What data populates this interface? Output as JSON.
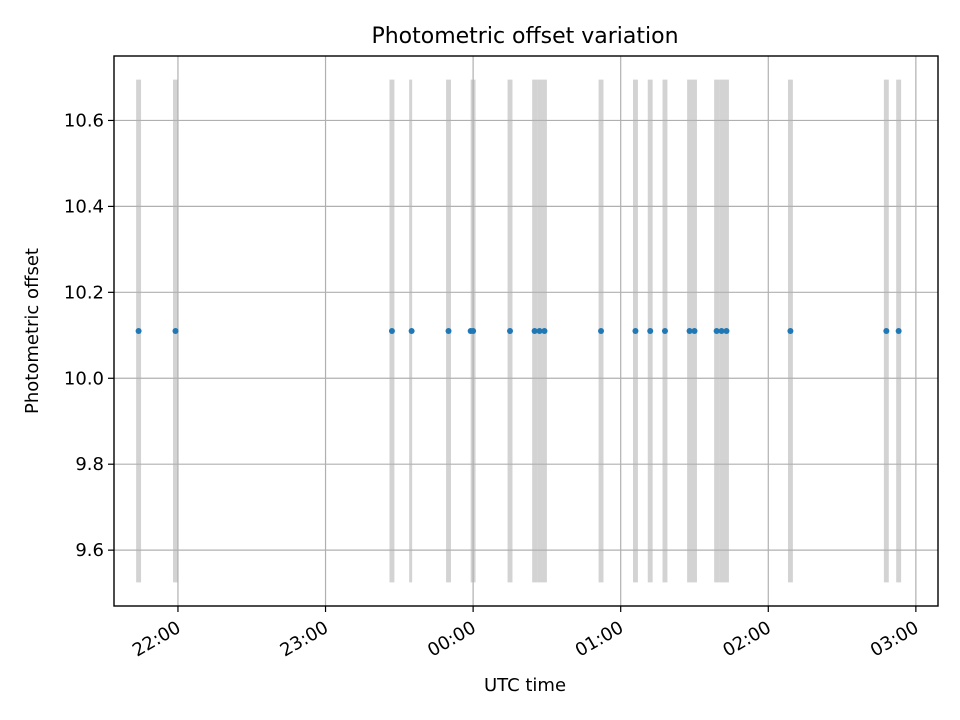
{
  "chart_data": {
    "type": "scatter",
    "title": "Photometric offset variation",
    "xlabel": "UTC time",
    "ylabel": "Photometric offset",
    "x_ticks": [
      "22:00",
      "23:00",
      "00:00",
      "01:00",
      "02:00",
      "03:00"
    ],
    "y_ticks": [
      "9.6",
      "9.8",
      "10.0",
      "10.2",
      "10.4",
      "10.6"
    ],
    "y_tick_values": [
      9.6,
      9.8,
      10.0,
      10.2,
      10.4,
      10.6
    ],
    "xlim": [
      "21:34",
      "03:09"
    ],
    "ylim": [
      9.47,
      10.75
    ],
    "grid": true,
    "marker_color": "#1f77b4",
    "band_color": "#d3d3d3",
    "band_range": [
      9.525,
      10.695
    ],
    "bands": [
      {
        "start": "21:43",
        "end": "21:45"
      },
      {
        "start": "21:58",
        "end": "22:00"
      },
      {
        "start": "23:26",
        "end": "23:28"
      },
      {
        "start": "23:34",
        "end": "23:35"
      },
      {
        "start": "23:49",
        "end": "23:51"
      },
      {
        "start": "23:59",
        "end": "00:01"
      },
      {
        "start": "00:14",
        "end": "00:16"
      },
      {
        "start": "00:24",
        "end": "00:26"
      },
      {
        "start": "00:26",
        "end": "00:30"
      },
      {
        "start": "00:51",
        "end": "00:53"
      },
      {
        "start": "01:05",
        "end": "01:07"
      },
      {
        "start": "01:11",
        "end": "01:13"
      },
      {
        "start": "01:17",
        "end": "01:19"
      },
      {
        "start": "01:27",
        "end": "01:31"
      },
      {
        "start": "01:38",
        "end": "01:40"
      },
      {
        "start": "01:40",
        "end": "01:44"
      },
      {
        "start": "02:08",
        "end": "02:10"
      },
      {
        "start": "02:47",
        "end": "02:49"
      },
      {
        "start": "02:52",
        "end": "02:54"
      }
    ],
    "points": [
      {
        "x": "21:44",
        "y": 10.11
      },
      {
        "x": "21:59",
        "y": 10.11
      },
      {
        "x": "23:27",
        "y": 10.11
      },
      {
        "x": "23:35",
        "y": 10.11
      },
      {
        "x": "23:50",
        "y": 10.11
      },
      {
        "x": "23:59",
        "y": 10.11
      },
      {
        "x": "00:00",
        "y": 10.11
      },
      {
        "x": "00:15",
        "y": 10.11
      },
      {
        "x": "00:25",
        "y": 10.11
      },
      {
        "x": "00:27",
        "y": 10.11
      },
      {
        "x": "00:29",
        "y": 10.11
      },
      {
        "x": "00:52",
        "y": 10.11
      },
      {
        "x": "01:06",
        "y": 10.11
      },
      {
        "x": "01:12",
        "y": 10.11
      },
      {
        "x": "01:18",
        "y": 10.11
      },
      {
        "x": "01:28",
        "y": 10.11
      },
      {
        "x": "01:30",
        "y": 10.11
      },
      {
        "x": "01:39",
        "y": 10.11
      },
      {
        "x": "01:41",
        "y": 10.11
      },
      {
        "x": "01:43",
        "y": 10.11
      },
      {
        "x": "02:09",
        "y": 10.11
      },
      {
        "x": "02:48",
        "y": 10.11
      },
      {
        "x": "02:53",
        "y": 10.11
      }
    ]
  }
}
